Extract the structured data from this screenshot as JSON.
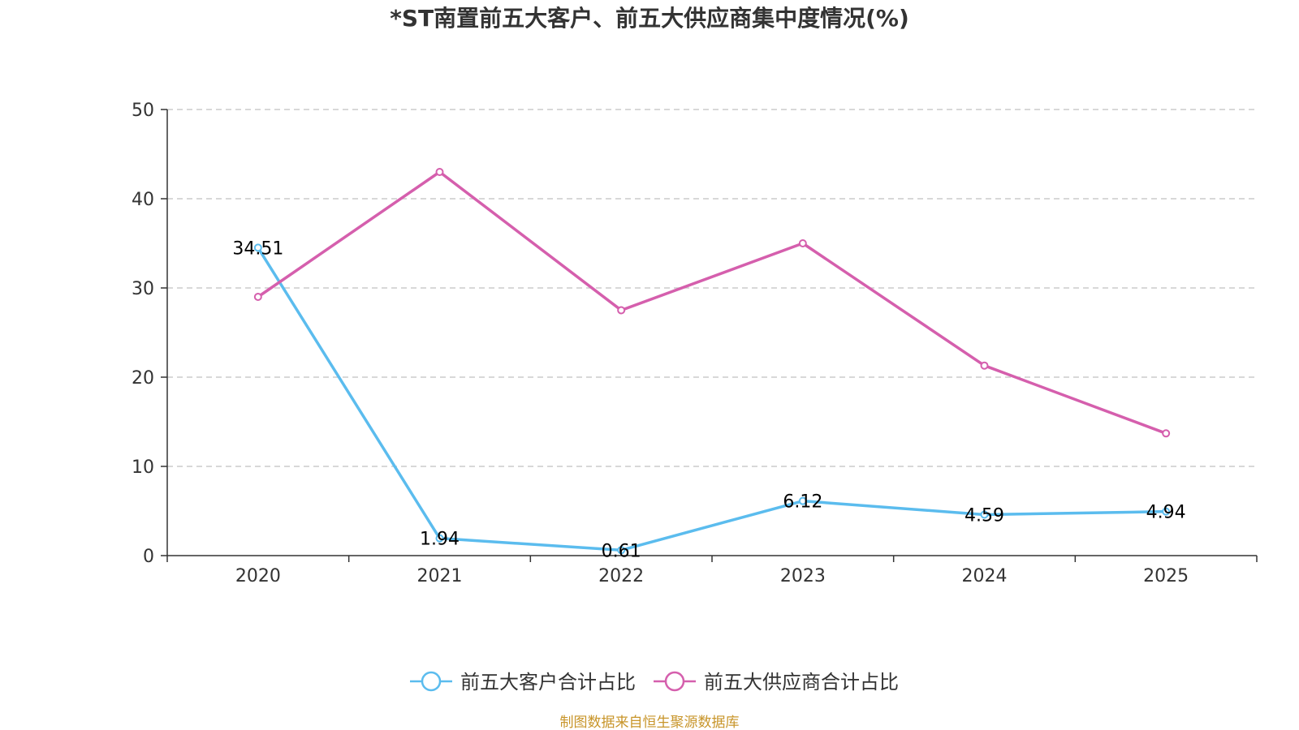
{
  "chart_data": {
    "type": "line",
    "title": "*ST南置前五大客户、前五大供应商集中度情况(%)",
    "categories": [
      "2020",
      "2021",
      "2022",
      "2023",
      "2024",
      "2025"
    ],
    "ylim": [
      0,
      50
    ],
    "yticks": [
      0,
      10,
      20,
      30,
      40,
      50
    ],
    "grid": true,
    "legend_position": "bottom-center",
    "series": [
      {
        "name": "前五大客户合计占比",
        "color": "#5bbcee",
        "values": [
          34.51,
          1.94,
          0.61,
          6.12,
          4.59,
          4.94
        ],
        "labels": [
          "34.51",
          "1.94",
          "0.61",
          "6.12",
          "4.59",
          "4.94"
        ],
        "show_labels": true
      },
      {
        "name": "前五大供应商合计占比",
        "color": "#d55fad",
        "values": [
          29.0,
          43.0,
          27.5,
          35.0,
          21.3,
          13.7
        ],
        "show_labels": false
      }
    ],
    "source": "制图数据来自恒生聚源数据库",
    "source_color": "#c8952a"
  }
}
